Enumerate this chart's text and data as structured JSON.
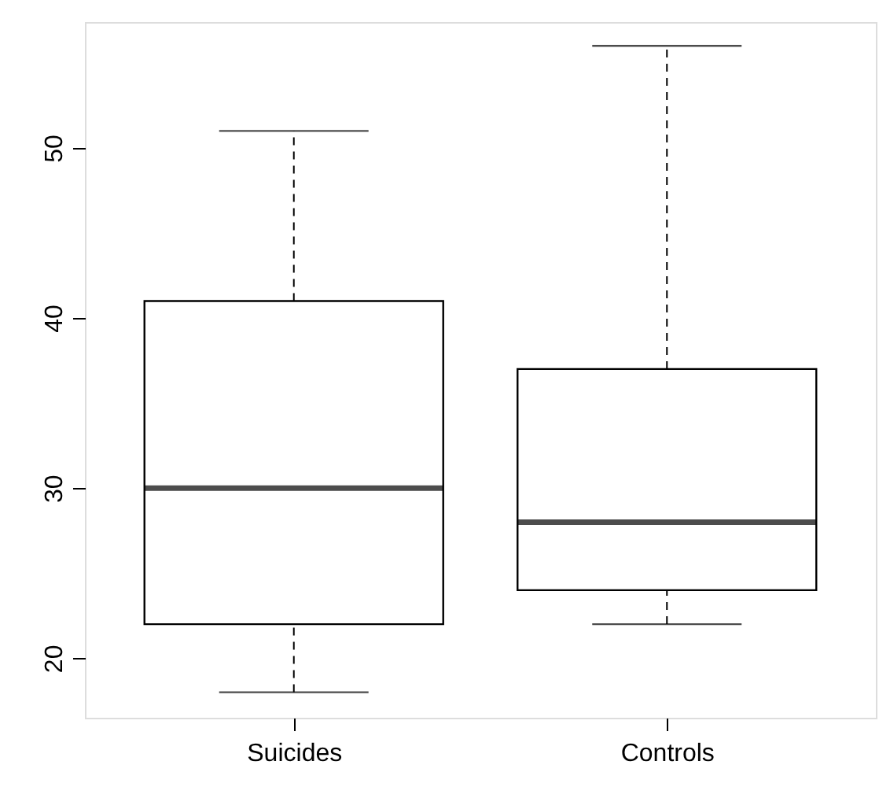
{
  "chart_data": {
    "type": "box",
    "categories": [
      "Suicides",
      "Controls"
    ],
    "boxes": [
      {
        "low": 18,
        "q1": 22,
        "median": 30,
        "q3": 41,
        "high": 51
      },
      {
        "low": 22,
        "q1": 24,
        "median": 28,
        "q3": 37,
        "high": 56
      }
    ],
    "ylim": [
      16.5,
      57.4
    ],
    "yticks": [
      20,
      30,
      40,
      50
    ],
    "grid": false,
    "line_style": "dashed"
  }
}
